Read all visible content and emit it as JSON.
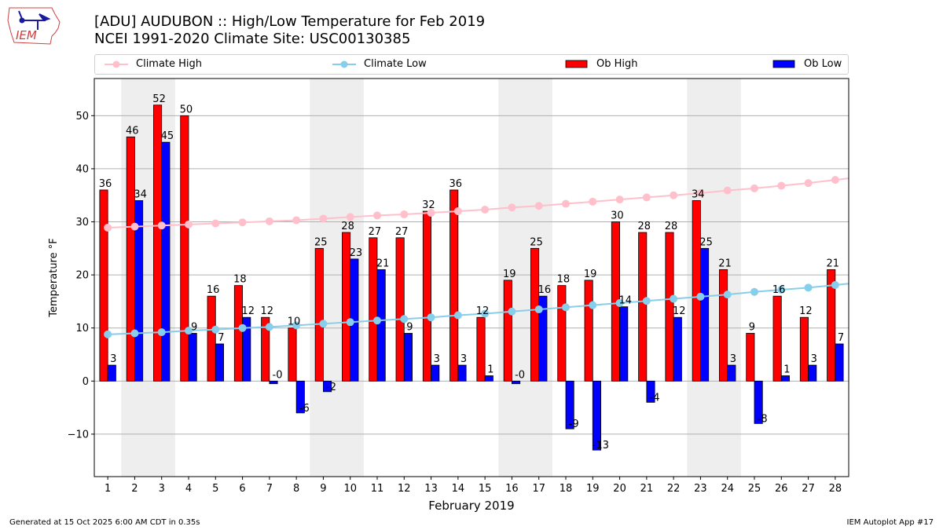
{
  "header": {
    "title_line1": "[ADU] AUDUBON :: High/Low Temperature for Feb 2019",
    "title_line2": "NCEI 1991-2020 Climate Site: USC00130385",
    "logo_text": "IEM"
  },
  "footer": {
    "generated": "Generated at 15 Oct 2025 6:00 AM CDT in 0.35s",
    "app": "IEM Autoplot App #17"
  },
  "colors": {
    "ob_high": "#ff0000",
    "ob_low": "#0000ff",
    "climate_high": "#ffc0cb",
    "climate_low": "#87ceeb",
    "weekend_shade": "#eeeeee",
    "grid": "#b0b0b0"
  },
  "chart_data": {
    "type": "bar",
    "title": "[ADU] AUDUBON :: High/Low Temperature for Feb 2019",
    "subtitle": "NCEI 1991-2020 Climate Site: USC00130385",
    "xlabel": "February 2019",
    "ylabel": "Temperature °F",
    "xlim": [
      0.5,
      28.5
    ],
    "ylim": [
      -18,
      57
    ],
    "yticks": [
      -10,
      0,
      10,
      20,
      30,
      40,
      50
    ],
    "ytick_labels": [
      "−10",
      "0",
      "10",
      "20",
      "30",
      "40",
      "50"
    ],
    "grid": "y",
    "legend_position": "top",
    "categories": [
      "1",
      "2",
      "3",
      "4",
      "5",
      "6",
      "7",
      "8",
      "9",
      "10",
      "11",
      "12",
      "13",
      "14",
      "15",
      "16",
      "17",
      "18",
      "19",
      "20",
      "21",
      "22",
      "23",
      "24",
      "25",
      "26",
      "27",
      "28"
    ],
    "shaded_weekends": [
      [
        2,
        3
      ],
      [
        9,
        10
      ],
      [
        16,
        17
      ],
      [
        23,
        24
      ]
    ],
    "series": [
      {
        "name": "Ob High",
        "kind": "bar",
        "values": [
          36,
          46,
          52,
          50,
          16,
          18,
          12,
          10,
          25,
          28,
          27,
          27,
          32,
          36,
          12,
          19,
          25,
          18,
          19,
          30,
          28,
          28,
          34,
          21,
          9,
          16,
          12,
          21
        ],
        "labels": [
          "36",
          "46",
          "52",
          "50",
          "16",
          "18",
          "12",
          "10",
          "25",
          "28",
          "27",
          "27",
          "32",
          "36",
          "12",
          "19",
          "25",
          "18",
          "19",
          "30",
          "28",
          "28",
          "34",
          "21",
          "9",
          "16",
          "12",
          "21"
        ]
      },
      {
        "name": "Ob Low",
        "kind": "bar",
        "values": [
          3,
          34,
          45,
          9,
          7,
          12,
          -0.5,
          -6,
          -2,
          23,
          21,
          9,
          3,
          3,
          1,
          -0.5,
          16,
          -9,
          -13,
          14,
          -4,
          12,
          25,
          3,
          -8,
          1,
          3,
          7
        ],
        "labels": [
          "3",
          "34",
          "45",
          "9",
          "7",
          "12",
          "-0",
          "-6",
          "-2",
          "23",
          "21",
          "9",
          "3",
          "3",
          "1",
          "-0",
          "16",
          "-9",
          "-13",
          "14",
          "-4",
          "12",
          "25",
          "3",
          "-8",
          "1",
          "3",
          "7"
        ]
      },
      {
        "name": "Climate High",
        "kind": "line",
        "values": [
          28.9,
          29.1,
          29.3,
          29.5,
          29.7,
          29.9,
          30.1,
          30.3,
          30.6,
          30.9,
          31.2,
          31.4,
          31.7,
          32.0,
          32.3,
          32.7,
          33.0,
          33.4,
          33.8,
          34.2,
          34.6,
          35.0,
          35.4,
          35.9,
          36.3,
          36.8,
          37.3,
          37.9
        ]
      },
      {
        "name": "Climate Low",
        "kind": "line",
        "values": [
          8.8,
          9.0,
          9.2,
          9.5,
          9.7,
          10.0,
          10.2,
          10.5,
          10.8,
          11.1,
          11.4,
          11.7,
          12.0,
          12.4,
          12.7,
          13.1,
          13.5,
          13.9,
          14.3,
          14.7,
          15.1,
          15.5,
          15.9,
          16.3,
          16.8,
          17.2,
          17.6,
          18.1
        ]
      }
    ]
  }
}
